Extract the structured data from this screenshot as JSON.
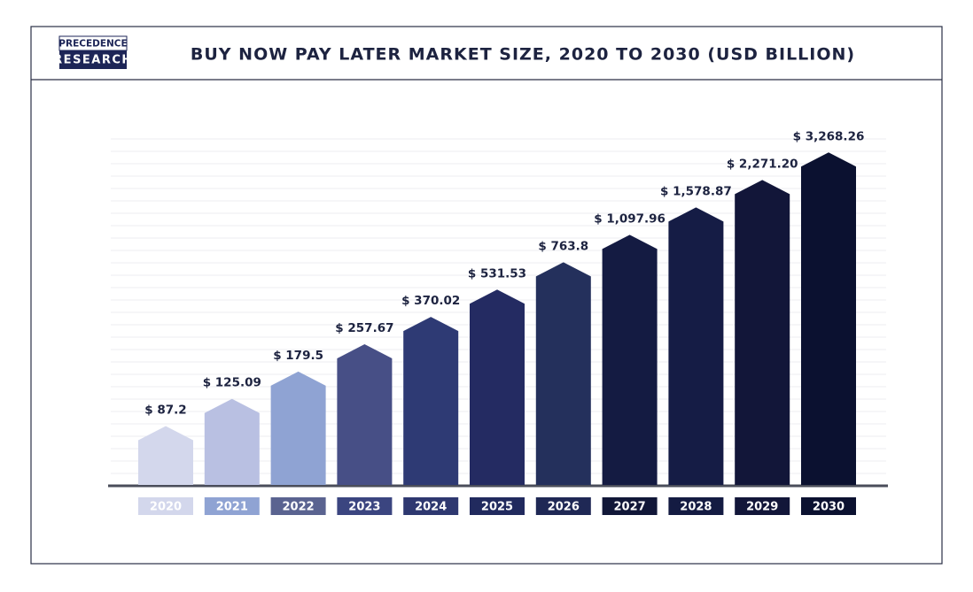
{
  "logo": {
    "line1": "PRECEDENCE",
    "line2": "RESEARCH"
  },
  "chart_data": {
    "type": "bar",
    "title": "BUY NOW PAY LATER MARKET SIZE, 2020 TO 2030 (USD BILLION)",
    "categories": [
      "2020",
      "2021",
      "2022",
      "2023",
      "2024",
      "2025",
      "2026",
      "2027",
      "2028",
      "2029",
      "2030"
    ],
    "values": [
      87.2,
      125.09,
      179.5,
      257.67,
      370.02,
      531.53,
      763.8,
      1097.96,
      1578.87,
      2271.2,
      3268.26
    ],
    "value_labels": [
      "$ 87.2",
      "$ 125.09",
      "$ 179.5",
      "$ 257.67",
      "$ 370.02",
      "$ 531.53",
      "$ 763.8",
      "$ 1,097.96",
      "$ 1,578.87",
      "$ 2,271.20",
      "$ 3,268.26"
    ],
    "colors": [
      "#d3d7ec",
      "#b9c0e2",
      "#8fa3d3",
      "#474f86",
      "#2e3a74",
      "#242b62",
      "#24305c",
      "#141b42",
      "#151c45",
      "#121639",
      "#0b1130"
    ],
    "label_colors": [
      "#d3d7ec",
      "#8fa3d3",
      "#5a6390",
      "#3b4580",
      "#2e3870",
      "#212a5e",
      "#1f2855",
      "#111738",
      "#141b42",
      "#121639",
      "#0b1130"
    ],
    "log_scale": true,
    "ylim": [
      40,
      5000
    ]
  }
}
